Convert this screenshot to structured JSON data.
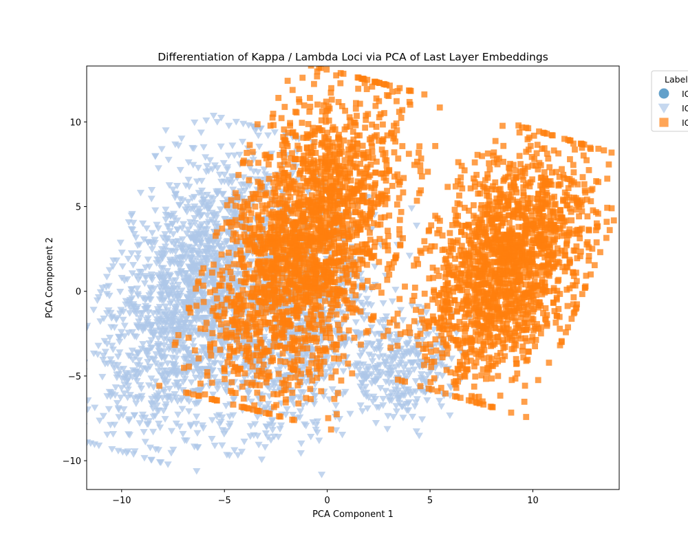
{
  "chart_data": {
    "type": "scatter",
    "title": "Differentiation of Kappa / Lambda Loci via PCA of Last Layer Embeddings",
    "xlabel": "PCA Component 1",
    "ylabel": "PCA Component 2",
    "xlim": [
      -11.7,
      14.2
    ],
    "ylim": [
      -11.7,
      13.3
    ],
    "xticks": [
      -10,
      -5,
      0,
      5,
      10
    ],
    "yticks": [
      -10,
      -5,
      0,
      5,
      10
    ],
    "xtick_labels": [
      "−10",
      "−5",
      "0",
      "5",
      "10"
    ],
    "ytick_labels": [
      "−10",
      "−5",
      "0",
      "5",
      "10"
    ],
    "grid": false,
    "legend": {
      "title": "Label",
      "placement": "outside-top-right",
      "entries": [
        "IG",
        "IG",
        "IG"
      ]
    },
    "series": [
      {
        "name": "IG",
        "marker": "circle",
        "color": "#1f77b4",
        "clusters": []
      },
      {
        "name": "IG",
        "marker": "triangle-down",
        "color": "#aec7e8",
        "clusters": [
          {
            "cx": -6.4,
            "cy": 0.0,
            "sx": 1.9,
            "sy": 4.4,
            "tilt": -0.32,
            "n": 1700
          },
          {
            "cx": -1.6,
            "cy": -2.0,
            "sx": 1.8,
            "sy": 3.6,
            "tilt": -0.3,
            "n": 1000
          },
          {
            "cx": 3.6,
            "cy": -4.5,
            "sx": 1.3,
            "sy": 1.6,
            "tilt": -0.25,
            "n": 320
          }
        ]
      },
      {
        "name": "IG",
        "marker": "square",
        "color": "#ff7f0e",
        "clusters": [
          {
            "cx": -1.0,
            "cy": 2.8,
            "sx": 1.9,
            "sy": 4.4,
            "tilt": -0.3,
            "n": 2100
          },
          {
            "cx": 8.6,
            "cy": 1.5,
            "sx": 1.8,
            "sy": 3.5,
            "tilt": -0.34,
            "n": 1700
          }
        ]
      }
    ]
  }
}
